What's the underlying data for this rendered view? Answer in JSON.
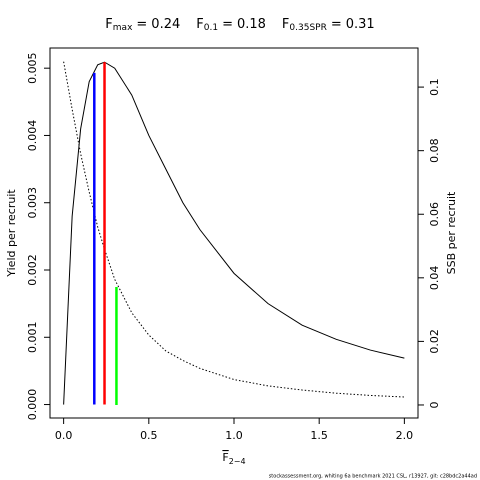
{
  "chart_data": {
    "type": "line",
    "title_parts": [
      {
        "symbol": "F",
        "subscript": "max",
        "relation": "=",
        "value": 0.24
      },
      {
        "symbol": "F",
        "subscript": "0.1",
        "relation": "=",
        "value": 0.18
      },
      {
        "symbol": "F",
        "subscript": "0.35SPR",
        "relation": "=",
        "value": 0.31
      }
    ],
    "xlabel": "F",
    "xlabel_subscript": "2−4",
    "xlabel_overline": true,
    "ylabel": "Yield per recruit",
    "y2label": "SSB per recruit",
    "footnote": "stockassessment.org, whiting 6a benchmark 2021 CSL, r13927, git: c28bdc2a44ad",
    "x": [
      0,
      0.05,
      0.1,
      0.15,
      0.2,
      0.24,
      0.3,
      0.4,
      0.5,
      0.6,
      0.7,
      0.8,
      1.0,
      1.2,
      1.4,
      1.6,
      1.8,
      2.0
    ],
    "series": [
      {
        "name": "Yield per recruit",
        "color": "#000000",
        "dash": "solid",
        "axis": "y",
        "values": [
          0,
          0.0028,
          0.0041,
          0.0048,
          0.00505,
          0.00509,
          0.005,
          0.0046,
          0.004,
          0.0035,
          0.003,
          0.0026,
          0.00195,
          0.0015,
          0.00118,
          0.00097,
          0.00081,
          0.00069
        ]
      },
      {
        "name": "SSB per recruit",
        "color": "#000000",
        "dash": "dotted",
        "axis": "y2",
        "values": [
          0.108,
          0.093,
          0.079,
          0.067,
          0.056,
          0.049,
          0.0395,
          0.029,
          0.022,
          0.017,
          0.014,
          0.0115,
          0.008,
          0.006,
          0.0047,
          0.0037,
          0.003,
          0.0025
        ]
      }
    ],
    "reference_lines": [
      {
        "x": 0.24,
        "top": 0.00509,
        "axis": "y",
        "color": "#ff0000"
      },
      {
        "x": 0.18,
        "top": 0.00493,
        "axis": "y",
        "color": "#0000ff"
      },
      {
        "x": 0.31,
        "top": 0.0371,
        "axis": "y2",
        "color": "#00ff00"
      }
    ],
    "xlim": [
      -0.08,
      2.08
    ],
    "xticks": [
      {
        "value": 0,
        "label": "0.0"
      },
      {
        "value": 0.5,
        "label": "0.5"
      },
      {
        "value": 1,
        "label": "1.0"
      },
      {
        "value": 1.5,
        "label": "1.5"
      },
      {
        "value": 2,
        "label": "2.0"
      }
    ],
    "ylim": [
      -0.0002,
      0.0053
    ],
    "yticks": [
      {
        "value": 0,
        "label": "0.000"
      },
      {
        "value": 0.001,
        "label": "0.001"
      },
      {
        "value": 0.002,
        "label": "0.002"
      },
      {
        "value": 0.003,
        "label": "0.003"
      },
      {
        "value": 0.004,
        "label": "0.004"
      },
      {
        "value": 0.005,
        "label": "0.005"
      }
    ],
    "y2lim": [
      -0.0041,
      0.1123
    ],
    "y2ticks": [
      0,
      0.02,
      0.04,
      0.06,
      0.08,
      0.1
    ]
  }
}
